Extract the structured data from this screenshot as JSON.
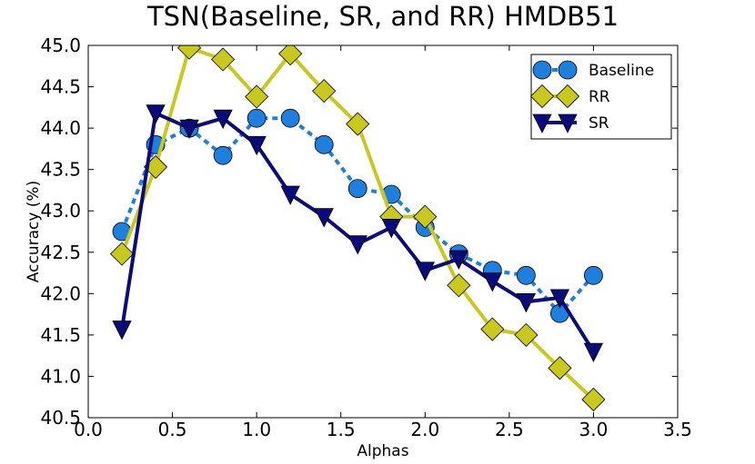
{
  "chart_data": {
    "type": "line",
    "title": "TSN(Baseline, SR, and RR) HMDB51",
    "xlabel": "Alphas",
    "ylabel": "Accuracy (%)",
    "xlim": [
      0.0,
      3.5
    ],
    "ylim": [
      40.5,
      45.0
    ],
    "xticks": [
      "0.0",
      "0.5",
      "1.0",
      "1.5",
      "2.0",
      "2.5",
      "3.0",
      "3.5"
    ],
    "yticks": [
      "40.5",
      "41.0",
      "41.5",
      "42.0",
      "42.5",
      "43.0",
      "43.5",
      "44.0",
      "44.5",
      "45.0"
    ],
    "x": [
      0.2,
      0.4,
      0.6,
      0.8,
      1.0,
      1.2,
      1.4,
      1.6,
      1.8,
      2.0,
      2.2,
      2.4,
      2.6,
      2.8,
      3.0
    ],
    "legend_position": "top-right",
    "series": [
      {
        "name": "Baseline",
        "marker": "circle",
        "line_style": "dashed",
        "color": "#1f7fdd",
        "values": [
          42.75,
          43.8,
          44.0,
          43.67,
          44.12,
          44.12,
          43.8,
          43.27,
          43.2,
          42.8,
          42.48,
          42.28,
          42.22,
          41.76,
          42.22
        ]
      },
      {
        "name": "RR",
        "marker": "diamond",
        "line_style": "solid",
        "color": "#c8c81f",
        "values": [
          42.48,
          43.53,
          44.97,
          44.83,
          44.38,
          44.9,
          44.45,
          44.05,
          42.93,
          42.93,
          42.1,
          41.57,
          41.5,
          41.1,
          40.72
        ]
      },
      {
        "name": "SR",
        "marker": "triangle-down",
        "line_style": "solid",
        "color": "#0a0a7a",
        "values": [
          41.57,
          44.18,
          44.0,
          44.12,
          43.8,
          43.2,
          42.93,
          42.6,
          42.8,
          42.28,
          42.42,
          42.15,
          41.9,
          41.95,
          41.3
        ]
      }
    ]
  }
}
